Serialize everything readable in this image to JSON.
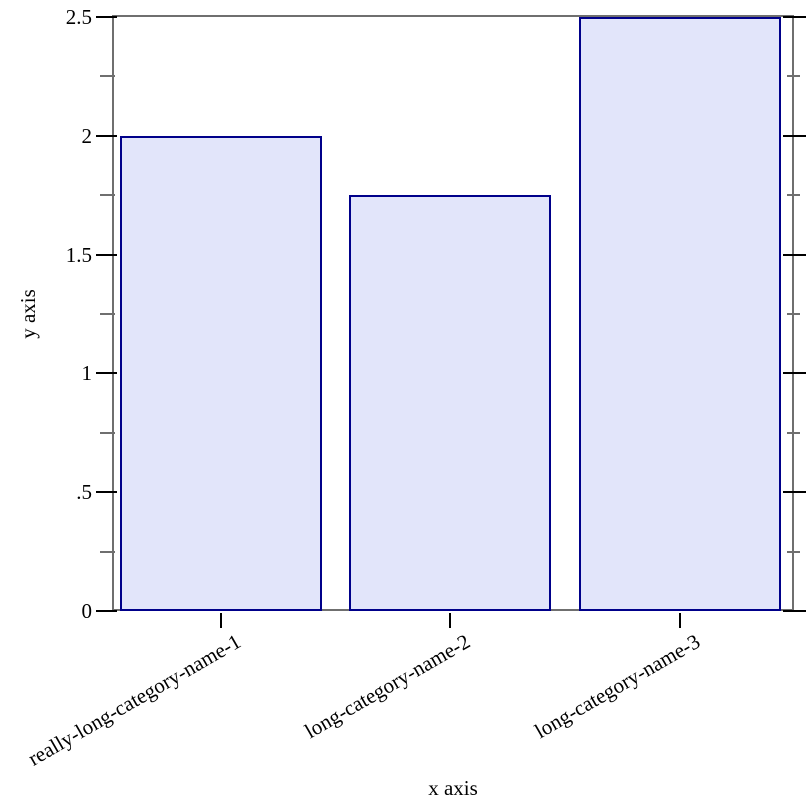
{
  "chart_data": {
    "type": "bar",
    "title": "",
    "categories": [
      "really-long-category-name-1",
      "long-category-name-2",
      "long-category-name-3"
    ],
    "values": [
      2,
      1.75,
      2.5
    ],
    "xlabel": "x axis",
    "ylabel": "y axis",
    "ylim": [
      0,
      2.5
    ],
    "grid": false,
    "legend_position": "none",
    "y_ticks": [
      {
        "value": 0,
        "label": "0"
      },
      {
        "value": 0.5,
        "label": ".5"
      },
      {
        "value": 1,
        "label": "1"
      },
      {
        "value": 1.5,
        "label": "1.5"
      },
      {
        "value": 2,
        "label": "2"
      },
      {
        "value": 2.5,
        "label": "2.5"
      }
    ],
    "y_minor_ticks": [
      0.25,
      0.75,
      1.25,
      1.75,
      2.25
    ],
    "colors": {
      "bar_fill": "#e2e5fa",
      "bar_border": "#00008a",
      "frame": "#6f6f6f",
      "major_tick": "#000000",
      "minor_tick": "#6f6f6f",
      "text": "#000000",
      "background": "#ffffff"
    }
  }
}
